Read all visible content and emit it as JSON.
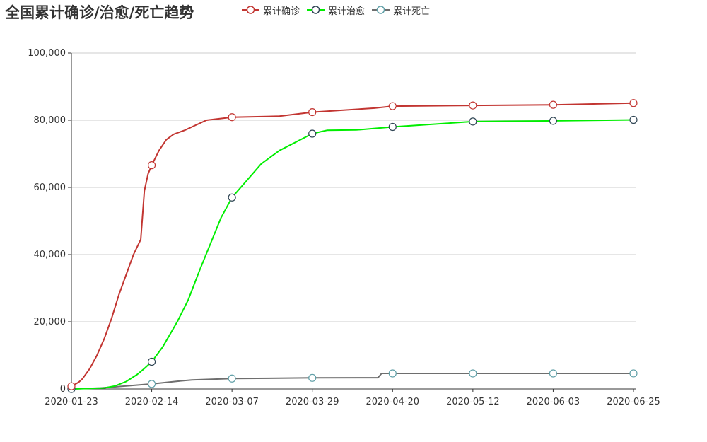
{
  "chart_data": {
    "type": "line",
    "title": "全国累计确诊/治愈/死亡趋势",
    "x_tick_labels": [
      "2020-01-23",
      "2020-02-14",
      "2020-03-07",
      "2020-03-29",
      "2020-04-20",
      "2020-05-12",
      "2020-06-03",
      "2020-06-25"
    ],
    "y_tick_labels": [
      "0",
      "20,000",
      "40,000",
      "60,000",
      "80,000",
      "100,000"
    ],
    "xlim": [
      "2020-01-23",
      "2020-06-25"
    ],
    "ylim": [
      0,
      100000
    ],
    "grid": "horizontal",
    "legend_position": "top",
    "series": [
      {
        "name": "累计确诊",
        "color": "#c23531",
        "values": [
          [
            "2020-01-23",
            800
          ],
          [
            "2020-01-25",
            2000
          ],
          [
            "2020-01-26",
            3000
          ],
          [
            "2020-01-28",
            6000
          ],
          [
            "2020-01-30",
            10000
          ],
          [
            "2020-02-01",
            15000
          ],
          [
            "2020-02-03",
            21000
          ],
          [
            "2020-02-05",
            28000
          ],
          [
            "2020-02-07",
            34000
          ],
          [
            "2020-02-09",
            40000
          ],
          [
            "2020-02-11",
            44500
          ],
          [
            "2020-02-12",
            59000
          ],
          [
            "2020-02-13",
            64000
          ],
          [
            "2020-02-14",
            66600
          ],
          [
            "2020-02-16",
            71000
          ],
          [
            "2020-02-18",
            74200
          ],
          [
            "2020-02-20",
            75800
          ],
          [
            "2020-02-23",
            77000
          ],
          [
            "2020-02-26",
            78500
          ],
          [
            "2020-02-29",
            80000
          ],
          [
            "2020-03-07",
            80900
          ],
          [
            "2020-03-20",
            81200
          ],
          [
            "2020-03-29",
            82400
          ],
          [
            "2020-04-05",
            82900
          ],
          [
            "2020-04-15",
            83600
          ],
          [
            "2020-04-20",
            84200
          ],
          [
            "2020-05-12",
            84400
          ],
          [
            "2020-06-03",
            84600
          ],
          [
            "2020-06-25",
            85100
          ]
        ]
      },
      {
        "name": "累计治愈",
        "color": "#2f4554",
        "line_color": "#00ee00",
        "values": [
          [
            "2020-01-23",
            0
          ],
          [
            "2020-02-01",
            300
          ],
          [
            "2020-02-04",
            900
          ],
          [
            "2020-02-07",
            2200
          ],
          [
            "2020-02-10",
            4300
          ],
          [
            "2020-02-12",
            6100
          ],
          [
            "2020-02-14",
            8100
          ],
          [
            "2020-02-17",
            12500
          ],
          [
            "2020-02-21",
            20000
          ],
          [
            "2020-02-24",
            26500
          ],
          [
            "2020-02-27",
            35000
          ],
          [
            "2020-03-01",
            43000
          ],
          [
            "2020-03-04",
            51000
          ],
          [
            "2020-03-07",
            57000
          ],
          [
            "2020-03-11",
            62000
          ],
          [
            "2020-03-15",
            67000
          ],
          [
            "2020-03-20",
            71000
          ],
          [
            "2020-03-29",
            76000
          ],
          [
            "2020-04-02",
            77000
          ],
          [
            "2020-04-10",
            77100
          ],
          [
            "2020-04-20",
            78000
          ],
          [
            "2020-05-12",
            79600
          ],
          [
            "2020-06-03",
            79800
          ],
          [
            "2020-06-25",
            80100
          ]
        ]
      },
      {
        "name": "累计死亡",
        "color": "#61a0a8",
        "line_color": "#6e6e6e",
        "values": [
          [
            "2020-01-23",
            0
          ],
          [
            "2020-01-31",
            300
          ],
          [
            "2020-02-07",
            900
          ],
          [
            "2020-02-14",
            1500
          ],
          [
            "2020-02-21",
            2300
          ],
          [
            "2020-02-25",
            2700
          ],
          [
            "2020-03-07",
            3100
          ],
          [
            "2020-03-29",
            3300
          ],
          [
            "2020-04-16",
            3340
          ],
          [
            "2020-04-17",
            4630
          ],
          [
            "2020-05-12",
            4630
          ],
          [
            "2020-06-03",
            4630
          ],
          [
            "2020-06-25",
            4640
          ]
        ]
      }
    ],
    "marker_dates": [
      "2020-01-23",
      "2020-02-14",
      "2020-03-07",
      "2020-03-29",
      "2020-04-20",
      "2020-05-12",
      "2020-06-03",
      "2020-06-25"
    ]
  }
}
